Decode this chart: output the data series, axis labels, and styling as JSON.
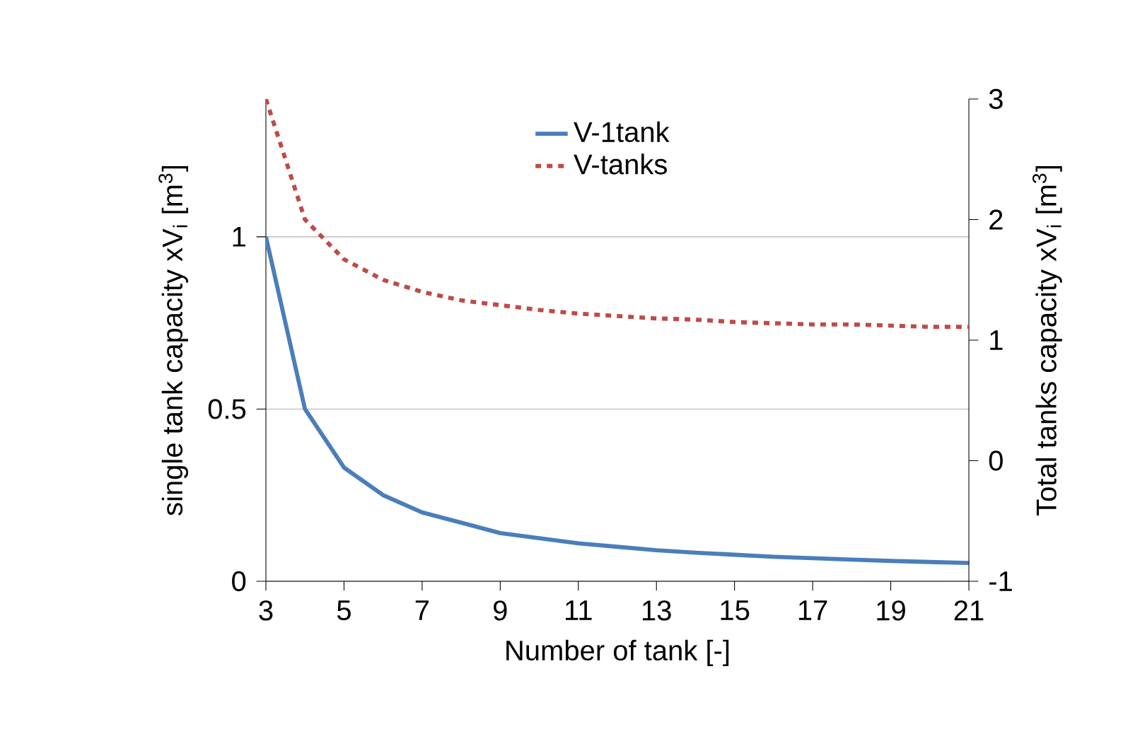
{
  "chart_data": {
    "type": "line",
    "xlabel": "Number of tank [-]",
    "ylabel": "single tank capacity xV$_{i}$ [m$^{3}$]",
    "y2label": "Total tanks capacity  xV$_{i}$ [m$^{3}$]",
    "x": [
      3,
      4,
      5,
      6,
      7,
      8,
      9,
      10,
      11,
      12,
      13,
      14,
      15,
      16,
      17,
      18,
      19,
      20,
      21
    ],
    "series": [
      {
        "name": "V-1tank",
        "color": "#4a7ebb",
        "line_style": "solid",
        "values": [
          1,
          0.5,
          0.33,
          0.25,
          0.2,
          0.17,
          0.14,
          0.125,
          0.11,
          0.1,
          0.09,
          0.083,
          0.077,
          0.071,
          0.067,
          0.063,
          0.059,
          0.056,
          0.053
        ]
      },
      {
        "name": "V-tanks",
        "color": "#be4b48",
        "line_style": "dashed",
        "axis": "y2",
        "values": [
          3,
          2,
          1.67,
          1.5,
          1.4,
          1.33,
          1.29,
          1.25,
          1.22,
          1.2,
          1.18,
          1.17,
          1.15,
          1.14,
          1.13,
          1.13,
          1.12,
          1.11,
          1.11
        ]
      }
    ],
    "xlim": [
      3,
      21
    ],
    "xticks": [
      3,
      5,
      7,
      9,
      11,
      13,
      15,
      17,
      19,
      21
    ],
    "ylim": [
      0,
      1.4
    ],
    "yticks": [
      0,
      0.5,
      1
    ],
    "y2lim": [
      -1,
      3
    ],
    "y2ticks": [
      -1,
      0,
      1,
      2,
      3
    ],
    "grid": "y",
    "legend": "top",
    "marker": "none"
  }
}
